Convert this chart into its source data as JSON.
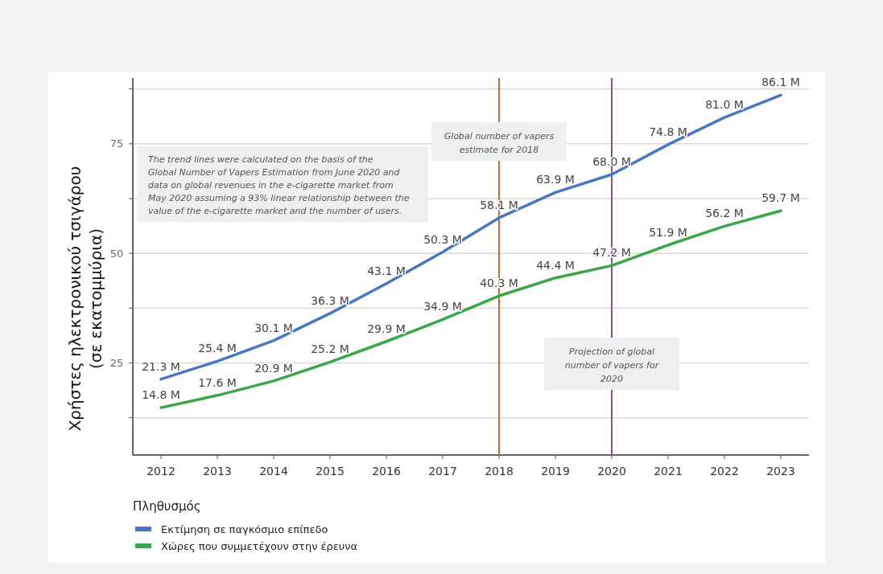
{
  "chart_data": {
    "type": "line",
    "categories": [
      "2012",
      "2013",
      "2014",
      "2015",
      "2016",
      "2017",
      "2018",
      "2019",
      "2020",
      "2021",
      "2022",
      "2023"
    ],
    "ylabel": "Χρήστες ηλεκτρονικού τσιγάρου (σε εκατομμύρια)",
    "legend_title": "Πληθυσμός",
    "series": [
      {
        "name": "Εκτίμηση σε παγκόσμιο επίπεδο",
        "color": "#4a78c0",
        "values": [
          21.3,
          25.4,
          30.1,
          36.3,
          43.1,
          50.3,
          58.1,
          63.9,
          68.0,
          74.8,
          81.0,
          86.1
        ],
        "value_labels": [
          "21.3 M",
          "25.4 M",
          "30.1 M",
          "36.3 M",
          "43.1 M",
          "50.3 M",
          "58.1 M",
          "63.9 M",
          "68.0 M",
          "74.8 M",
          "81.0 M",
          "86.1 M"
        ]
      },
      {
        "name": "Χώρες που συμμετέχουν στην έρευνα",
        "color": "#3aa64a",
        "values": [
          14.8,
          17.6,
          20.9,
          25.2,
          29.9,
          34.9,
          40.3,
          44.4,
          47.2,
          51.9,
          56.2,
          59.7
        ],
        "value_labels": [
          "14.8 M",
          "17.6 M",
          "20.9 M",
          "25.2 M",
          "29.9 M",
          "34.9 M",
          "40.3 M",
          "44.4 M",
          "47.2 M",
          "51.9 M",
          "56.2 M",
          "59.7 M"
        ]
      }
    ],
    "ylim": [
      4,
      90
    ],
    "yticks": [
      {
        "value": 12.5,
        "label": null
      },
      25,
      {
        "value": 37.5,
        "label": null
      },
      50,
      {
        "value": 62.5,
        "label": null
      },
      75,
      {
        "value": 87.5,
        "label": null
      }
    ],
    "grid": "y",
    "legend": "bottom",
    "marker": "none",
    "line_style": "solid",
    "ref_lines": [
      {
        "axis": "x",
        "value": "2018",
        "label": "Global number of vapers estimate for 2018",
        "color": "#e0642a"
      },
      {
        "axis": "x",
        "value": "2020",
        "label": "Projection of global number of vapers for 2020",
        "color": "#8e4a9a"
      }
    ],
    "annotations": [
      "The trend lines were calculated on the basis of the Global Number of Vapers Estimation from June 2020 and data on global revenues in the e-cigarette market from May 2020 assuming a 93% linear relationship between the value of the e-cigarette market and the number of users."
    ]
  }
}
